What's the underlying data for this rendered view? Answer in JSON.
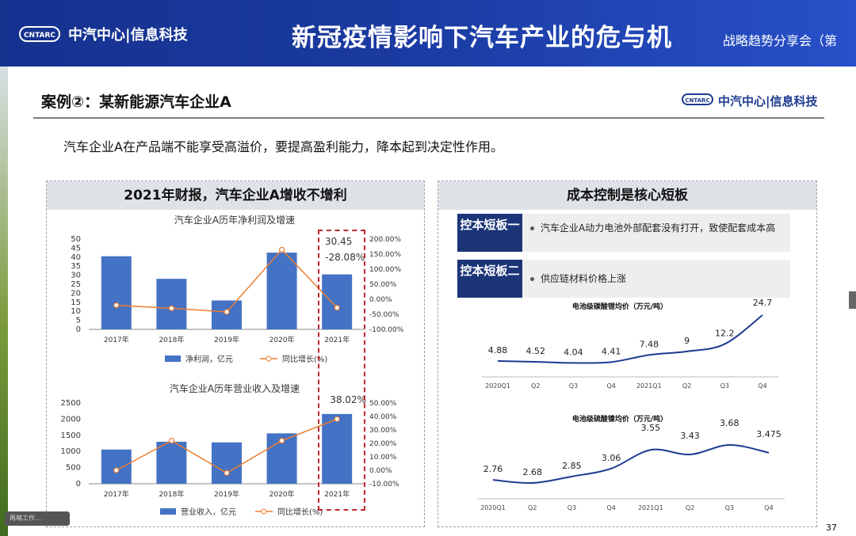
{
  "header": {
    "logo_text": "CNTARC",
    "org": "中汽中心|信息科技",
    "title": "新冠疫情影响下汽车产业的危与机",
    "subtitle": "战略趋势分享会（第"
  },
  "slide": {
    "case_title": "案例②：某新能源汽车企业A",
    "logo_text": "CNTARC",
    "org": "中汽中心|信息科技",
    "lead": "汽车企业A在产品端不能享受高溢价，要提高盈利能力，降本起到决定性作用。",
    "page_number": "37"
  },
  "left_panel": {
    "header": "2021年财报，汽车企业A增收不增利"
  },
  "right_panel": {
    "header": "成本控制是核心短板",
    "cards": [
      {
        "tag": "控本短板一",
        "text": "汽车企业A动力电池外部配套没有打开，致使配套成本高"
      },
      {
        "tag": "控本短板二",
        "text": "供应链材料价格上涨"
      }
    ]
  },
  "taskbar": {
    "label": "再萌工作..."
  },
  "chart_data": [
    {
      "type": "bar",
      "title": "汽车企业A历年净利润及增速",
      "categories": [
        "2017年",
        "2018年",
        "2019年",
        "2020年",
        "2021年"
      ],
      "series": [
        {
          "name": "净利润，亿元",
          "values": [
            40.5,
            28.0,
            16.0,
            42.5,
            30.45
          ],
          "axis": "left",
          "color": "#4472c4"
        },
        {
          "name": "同比增长(%)",
          "values": [
            -20.0,
            -30.0,
            -42.0,
            165.0,
            -28.08
          ],
          "axis": "right",
          "type": "line",
          "color": "#ed7d31"
        }
      ],
      "ylim": [
        0,
        50
      ],
      "y_ticks": [
        "0",
        "5",
        "10",
        "15",
        "20",
        "25",
        "30",
        "35",
        "40",
        "45",
        "50"
      ],
      "y2lim": [
        -100,
        200
      ],
      "y2_ticks": [
        "-100.00%",
        "-50.00%",
        "0.00%",
        "50.00%",
        "100.00%",
        "150.00%",
        "200.00%"
      ],
      "annotations": [
        "30.45",
        "-28.08%"
      ],
      "legend": "bottom"
    },
    {
      "type": "bar",
      "title": "汽车企业A历年营业收入及增速",
      "categories": [
        "2017年",
        "2018年",
        "2019年",
        "2020年",
        "2021年"
      ],
      "series": [
        {
          "name": "营业收入，亿元",
          "values": [
            1060,
            1300,
            1280,
            1560,
            2160
          ],
          "axis": "left",
          "color": "#4472c4"
        },
        {
          "name": "同比增长(%)",
          "values": [
            0.0,
            22.0,
            -2.0,
            22.0,
            38.02
          ],
          "axis": "right",
          "type": "line",
          "color": "#ed7d31"
        }
      ],
      "ylim": [
        0,
        2500
      ],
      "y_ticks": [
        "0",
        "500",
        "1000",
        "1500",
        "2000",
        "2500"
      ],
      "y2lim": [
        -10,
        50
      ],
      "y2_ticks": [
        "-10.00%",
        "0.00%",
        "10.00%",
        "20.00%",
        "30.00%",
        "40.00%",
        "50.00%"
      ],
      "annotations": [
        "38.02%"
      ],
      "legend": "bottom"
    },
    {
      "type": "line",
      "title": "电池级碳酸锂均价（万元/吨）",
      "categories": [
        "2020Q1",
        "Q2",
        "Q3",
        "Q4",
        "2021Q1",
        "Q2",
        "Q3",
        "Q4"
      ],
      "series": [
        {
          "values": [
            4.88,
            4.52,
            4.04,
            4.41,
            7.48,
            9,
            12.2,
            24.7
          ],
          "color": "#1c3a8f"
        }
      ],
      "labels": [
        "4.88",
        "4.52",
        "4.04",
        "4.41",
        "7.48",
        "9",
        "12.2",
        "24.7"
      ]
    },
    {
      "type": "line",
      "title": "电池级硫酸镍均价（万元/吨）",
      "categories": [
        "2020Q1",
        "Q2",
        "Q3",
        "Q4",
        "2021Q1",
        "Q2",
        "Q3",
        "Q4"
      ],
      "series": [
        {
          "values": [
            2.76,
            2.68,
            2.85,
            3.06,
            3.55,
            3.43,
            3.68,
            3.475
          ],
          "color": "#1c3a8f"
        }
      ],
      "labels": [
        "2.76",
        "2.68",
        "2.85",
        "3.06",
        "3.55",
        "3.43",
        "3.68",
        "3.475"
      ]
    }
  ]
}
